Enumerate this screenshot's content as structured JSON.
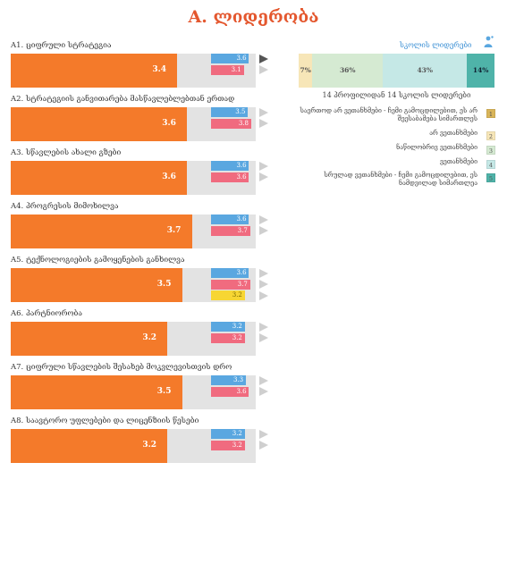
{
  "title": "A. ლიდერობა",
  "colors": {
    "main": "#f47a2a",
    "track": "#e3e3e3",
    "blue": "#5aa7e0",
    "pink": "#f06b7f",
    "yellow": "#f7d633",
    "title": "#e4572e"
  },
  "max_value": 5,
  "items": [
    {
      "label": "A1. ციფრული სტრატეგია",
      "value": "3.4",
      "minis": [
        {
          "value": "3.6",
          "color": "blue"
        },
        {
          "value": "3.1",
          "color": "pink"
        }
      ],
      "active_arrow": 0
    },
    {
      "label": "A2. სტრატეგიის განვითარება მასწავლებლებთან ერთად",
      "value": "3.6",
      "minis": [
        {
          "value": "3.5",
          "color": "blue"
        },
        {
          "value": "3.8",
          "color": "pink"
        }
      ],
      "active_arrow": -1
    },
    {
      "label": "A3. სწავლების ახალი გზები",
      "value": "3.6",
      "minis": [
        {
          "value": "3.6",
          "color": "blue"
        },
        {
          "value": "3.6",
          "color": "pink"
        }
      ],
      "active_arrow": -1
    },
    {
      "label": "A4. პროგრესის მიმოხილვა",
      "value": "3.7",
      "minis": [
        {
          "value": "3.6",
          "color": "blue"
        },
        {
          "value": "3.7",
          "color": "pink"
        }
      ],
      "active_arrow": -1
    },
    {
      "label": "A5. ტექნოლოგიების გამოყენების განხილვა",
      "value": "3.5",
      "minis": [
        {
          "value": "3.6",
          "color": "blue"
        },
        {
          "value": "3.7",
          "color": "pink"
        },
        {
          "value": "3.2",
          "color": "yellow"
        }
      ],
      "active_arrow": -1
    },
    {
      "label": "A6. პარტნიორობა",
      "value": "3.2",
      "minis": [
        {
          "value": "3.2",
          "color": "blue"
        },
        {
          "value": "3.2",
          "color": "pink"
        }
      ],
      "active_arrow": -1
    },
    {
      "label": "A7. ციფრული სწავლების შესახებ მოკვლევისთვის დრო",
      "value": "3.5",
      "minis": [
        {
          "value": "3.3",
          "color": "blue"
        },
        {
          "value": "3.6",
          "color": "pink"
        }
      ],
      "active_arrow": -1
    },
    {
      "label": "A8. საავტორო უფლებები და ლიცენზიის წესები",
      "value": "3.2",
      "minis": [
        {
          "value": "3.2",
          "color": "blue"
        },
        {
          "value": "3.2",
          "color": "pink"
        }
      ],
      "active_arrow": -1
    }
  ],
  "panel": {
    "legend_title": "სკოლის ლიდერები",
    "person_icon": "person-icon",
    "segments": [
      {
        "label": "7%",
        "value": 7,
        "color": "#f7e6b8"
      },
      {
        "label": "36%",
        "value": 36,
        "color": "#d5ead2"
      },
      {
        "label": "43%",
        "value": 43,
        "color": "#c5e8e6"
      },
      {
        "label": "14%",
        "value": 14,
        "color": "#4fb3a9"
      }
    ],
    "summary": "14 პროფილიდან 14 სკოლის ლიდერები",
    "legend": [
      {
        "text": "საერთოდ არ ვეთანხმები - ჩემი გამოცდილებით, ეს არ შეესაბამება სიმართლეს",
        "num": "1",
        "color": "#d9b55a"
      },
      {
        "text": "არ ვეთანხმები",
        "num": "2",
        "color": "#f7e6b8"
      },
      {
        "text": "ნაწილობრივ ვეთანხმები",
        "num": "3",
        "color": "#d5ead2"
      },
      {
        "text": "ვეთანხმები",
        "num": "4",
        "color": "#c5e8e6"
      },
      {
        "text": "სრულად ვეთანხმები - ჩემი გამოცდილებით, ეს ნამდვილად სიმართლეა",
        "num": "5",
        "color": "#4fb3a9"
      }
    ]
  }
}
